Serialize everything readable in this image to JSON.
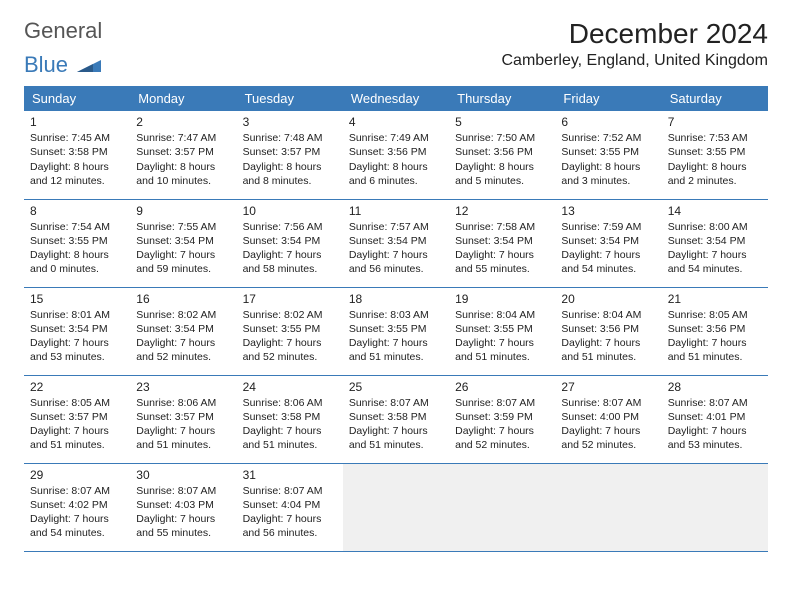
{
  "brand": {
    "part1": "General",
    "part2": "Blue"
  },
  "title": "December 2024",
  "location": "Camberley, England, United Kingdom",
  "colors": {
    "header_bg": "#3a7ab8",
    "header_text": "#ffffff",
    "border": "#3a7ab8",
    "body_text": "#222222",
    "empty_bg": "#f0f0f0"
  },
  "typography": {
    "title_fontsize": 28,
    "location_fontsize": 16,
    "dayheader_fontsize": 13,
    "cell_fontsize": 10.5
  },
  "dayHeaders": [
    "Sunday",
    "Monday",
    "Tuesday",
    "Wednesday",
    "Thursday",
    "Friday",
    "Saturday"
  ],
  "weeks": [
    [
      {
        "day": "1",
        "sunrise": "7:45 AM",
        "sunset": "3:58 PM",
        "daylight": "8 hours and 12 minutes."
      },
      {
        "day": "2",
        "sunrise": "7:47 AM",
        "sunset": "3:57 PM",
        "daylight": "8 hours and 10 minutes."
      },
      {
        "day": "3",
        "sunrise": "7:48 AM",
        "sunset": "3:57 PM",
        "daylight": "8 hours and 8 minutes."
      },
      {
        "day": "4",
        "sunrise": "7:49 AM",
        "sunset": "3:56 PM",
        "daylight": "8 hours and 6 minutes."
      },
      {
        "day": "5",
        "sunrise": "7:50 AM",
        "sunset": "3:56 PM",
        "daylight": "8 hours and 5 minutes."
      },
      {
        "day": "6",
        "sunrise": "7:52 AM",
        "sunset": "3:55 PM",
        "daylight": "8 hours and 3 minutes."
      },
      {
        "day": "7",
        "sunrise": "7:53 AM",
        "sunset": "3:55 PM",
        "daylight": "8 hours and 2 minutes."
      }
    ],
    [
      {
        "day": "8",
        "sunrise": "7:54 AM",
        "sunset": "3:55 PM",
        "daylight": "8 hours and 0 minutes."
      },
      {
        "day": "9",
        "sunrise": "7:55 AM",
        "sunset": "3:54 PM",
        "daylight": "7 hours and 59 minutes."
      },
      {
        "day": "10",
        "sunrise": "7:56 AM",
        "sunset": "3:54 PM",
        "daylight": "7 hours and 58 minutes."
      },
      {
        "day": "11",
        "sunrise": "7:57 AM",
        "sunset": "3:54 PM",
        "daylight": "7 hours and 56 minutes."
      },
      {
        "day": "12",
        "sunrise": "7:58 AM",
        "sunset": "3:54 PM",
        "daylight": "7 hours and 55 minutes."
      },
      {
        "day": "13",
        "sunrise": "7:59 AM",
        "sunset": "3:54 PM",
        "daylight": "7 hours and 54 minutes."
      },
      {
        "day": "14",
        "sunrise": "8:00 AM",
        "sunset": "3:54 PM",
        "daylight": "7 hours and 54 minutes."
      }
    ],
    [
      {
        "day": "15",
        "sunrise": "8:01 AM",
        "sunset": "3:54 PM",
        "daylight": "7 hours and 53 minutes."
      },
      {
        "day": "16",
        "sunrise": "8:02 AM",
        "sunset": "3:54 PM",
        "daylight": "7 hours and 52 minutes."
      },
      {
        "day": "17",
        "sunrise": "8:02 AM",
        "sunset": "3:55 PM",
        "daylight": "7 hours and 52 minutes."
      },
      {
        "day": "18",
        "sunrise": "8:03 AM",
        "sunset": "3:55 PM",
        "daylight": "7 hours and 51 minutes."
      },
      {
        "day": "19",
        "sunrise": "8:04 AM",
        "sunset": "3:55 PM",
        "daylight": "7 hours and 51 minutes."
      },
      {
        "day": "20",
        "sunrise": "8:04 AM",
        "sunset": "3:56 PM",
        "daylight": "7 hours and 51 minutes."
      },
      {
        "day": "21",
        "sunrise": "8:05 AM",
        "sunset": "3:56 PM",
        "daylight": "7 hours and 51 minutes."
      }
    ],
    [
      {
        "day": "22",
        "sunrise": "8:05 AM",
        "sunset": "3:57 PM",
        "daylight": "7 hours and 51 minutes."
      },
      {
        "day": "23",
        "sunrise": "8:06 AM",
        "sunset": "3:57 PM",
        "daylight": "7 hours and 51 minutes."
      },
      {
        "day": "24",
        "sunrise": "8:06 AM",
        "sunset": "3:58 PM",
        "daylight": "7 hours and 51 minutes."
      },
      {
        "day": "25",
        "sunrise": "8:07 AM",
        "sunset": "3:58 PM",
        "daylight": "7 hours and 51 minutes."
      },
      {
        "day": "26",
        "sunrise": "8:07 AM",
        "sunset": "3:59 PM",
        "daylight": "7 hours and 52 minutes."
      },
      {
        "day": "27",
        "sunrise": "8:07 AM",
        "sunset": "4:00 PM",
        "daylight": "7 hours and 52 minutes."
      },
      {
        "day": "28",
        "sunrise": "8:07 AM",
        "sunset": "4:01 PM",
        "daylight": "7 hours and 53 minutes."
      }
    ],
    [
      {
        "day": "29",
        "sunrise": "8:07 AM",
        "sunset": "4:02 PM",
        "daylight": "7 hours and 54 minutes."
      },
      {
        "day": "30",
        "sunrise": "8:07 AM",
        "sunset": "4:03 PM",
        "daylight": "7 hours and 55 minutes."
      },
      {
        "day": "31",
        "sunrise": "8:07 AM",
        "sunset": "4:04 PM",
        "daylight": "7 hours and 56 minutes."
      },
      null,
      null,
      null,
      null
    ]
  ],
  "labels": {
    "sunrise": "Sunrise: ",
    "sunset": "Sunset: ",
    "daylight": "Daylight: "
  }
}
